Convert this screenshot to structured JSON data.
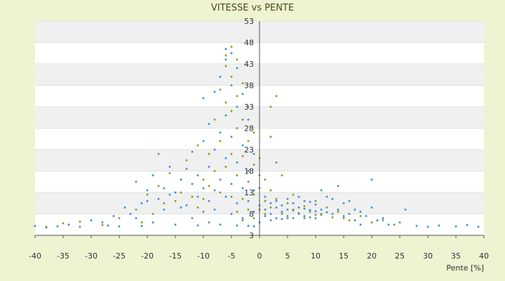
{
  "chart_data": {
    "type": "scatter",
    "title": "VITESSE vs PENTE",
    "xlabel": "Pente [%]",
    "ylabel": "",
    "xlim": [
      -40,
      40
    ],
    "ylim": [
      3,
      53
    ],
    "x_ticks": [
      -40,
      -35,
      -30,
      -25,
      -20,
      -15,
      -10,
      -5,
      0,
      5,
      10,
      15,
      20,
      25,
      30,
      35,
      40
    ],
    "y_ticks": [
      3,
      8,
      13,
      18,
      23,
      28,
      33,
      38,
      43,
      48,
      53
    ],
    "x_tick_labels": [
      "-40",
      "-35",
      "-30",
      "-25",
      "-20",
      "-15",
      "-10",
      "-5",
      "0",
      "5",
      "10",
      "15",
      "20",
      "25",
      "30",
      "35",
      "40"
    ],
    "y_tick_labels": [
      "3",
      "8",
      "13",
      "18",
      "23",
      "28",
      "33",
      "38",
      "43",
      "48",
      "53"
    ],
    "grid": true,
    "legend": "none",
    "colors": {
      "background": "#eef3d2",
      "band_light": "#ffffff",
      "band_dark": "#f0f0f0",
      "series_blue": "#3a8fd6",
      "series_olive": "#8c9a1c",
      "axis": "#555555"
    },
    "series": [
      {
        "color": "#3a8fd6",
        "points": [
          [
            -40,
            5.2
          ],
          [
            -38,
            4.8
          ],
          [
            -36,
            5.1
          ],
          [
            -34,
            5.5
          ],
          [
            -32,
            5.0
          ],
          [
            -30,
            6.5
          ],
          [
            -28,
            6.0
          ],
          [
            -27,
            5.3
          ],
          [
            -26,
            7.5
          ],
          [
            -25,
            5.1
          ],
          [
            -24,
            9.5
          ],
          [
            -23,
            8.0
          ],
          [
            -22,
            7.0
          ],
          [
            -22,
            15.5
          ],
          [
            -21,
            10.5
          ],
          [
            -21,
            5.2
          ],
          [
            -20,
            11.0
          ],
          [
            -20,
            13.5
          ],
          [
            -19,
            17.0
          ],
          [
            -19,
            6.0
          ],
          [
            -18,
            11.5
          ],
          [
            -18,
            22.0
          ],
          [
            -17,
            14.0
          ],
          [
            -17,
            9.0
          ],
          [
            -16,
            12.5
          ],
          [
            -16,
            19.0
          ],
          [
            -15,
            13.0
          ],
          [
            -15,
            5.5
          ],
          [
            -14,
            16.0
          ],
          [
            -14,
            9.5
          ],
          [
            -13,
            10.0
          ],
          [
            -13,
            18.5
          ],
          [
            -12,
            15.0
          ],
          [
            -12,
            7.0
          ],
          [
            -12,
            22.5
          ],
          [
            -11,
            12.0
          ],
          [
            -11,
            17.0
          ],
          [
            -11,
            5.3
          ],
          [
            -10,
            14.0
          ],
          [
            -10,
            25.0
          ],
          [
            -10,
            8.5
          ],
          [
            -10,
            35.0
          ],
          [
            -9,
            19.0
          ],
          [
            -9,
            11.0
          ],
          [
            -9,
            29.0
          ],
          [
            -9,
            6.0
          ],
          [
            -8,
            23.0
          ],
          [
            -8,
            13.5
          ],
          [
            -8,
            36.5
          ],
          [
            -8,
            9.0
          ],
          [
            -7,
            27.0
          ],
          [
            -7,
            16.0
          ],
          [
            -7,
            40.0
          ],
          [
            -7,
            5.5
          ],
          [
            -6,
            44.0
          ],
          [
            -6,
            31.0
          ],
          [
            -6,
            21.0
          ],
          [
            -6,
            12.0
          ],
          [
            -6,
            46.5
          ],
          [
            -5,
            45.5
          ],
          [
            -5,
            38.0
          ],
          [
            -5,
            26.0
          ],
          [
            -5,
            15.0
          ],
          [
            -5,
            8.0
          ],
          [
            -4,
            42.0
          ],
          [
            -4,
            33.0
          ],
          [
            -4,
            20.0
          ],
          [
            -4,
            10.5
          ],
          [
            -4,
            5.3
          ],
          [
            -3,
            36.0
          ],
          [
            -3,
            24.0
          ],
          [
            -3,
            14.0
          ],
          [
            -3,
            7.0
          ],
          [
            -2,
            30.0
          ],
          [
            -2,
            18.0
          ],
          [
            -2,
            11.0
          ],
          [
            -2,
            5.2
          ],
          [
            -1,
            22.0
          ],
          [
            -1,
            13.5
          ],
          [
            -1,
            8.5
          ],
          [
            -1,
            5.1
          ],
          [
            0,
            17.0
          ],
          [
            0,
            10.0
          ],
          [
            0,
            6.0
          ],
          [
            1,
            12.0
          ],
          [
            1,
            9.0
          ],
          [
            1,
            7.5
          ],
          [
            2,
            10.5
          ],
          [
            2,
            8.0
          ],
          [
            2,
            6.5
          ],
          [
            3,
            11.0
          ],
          [
            3,
            9.5
          ],
          [
            3,
            7.0
          ],
          [
            4,
            10.0
          ],
          [
            4,
            8.5
          ],
          [
            4,
            6.8
          ],
          [
            5,
            11.5
          ],
          [
            5,
            9.0
          ],
          [
            5,
            7.5
          ],
          [
            6,
            10.5
          ],
          [
            6,
            8.8
          ],
          [
            6,
            7.0
          ],
          [
            7,
            12.0
          ],
          [
            7,
            9.5
          ],
          [
            7,
            8.0
          ],
          [
            8,
            11.0
          ],
          [
            8,
            9.2
          ],
          [
            8,
            7.5
          ],
          [
            9,
            10.8
          ],
          [
            9,
            8.9
          ],
          [
            9,
            7.2
          ],
          [
            10,
            10.2
          ],
          [
            10,
            8.6
          ],
          [
            10,
            7.0
          ],
          [
            11,
            13.5
          ],
          [
            11,
            9.0
          ],
          [
            11,
            7.8
          ],
          [
            12,
            12.0
          ],
          [
            12,
            8.4
          ],
          [
            13,
            11.5
          ],
          [
            13,
            8.0
          ],
          [
            14,
            14.5
          ],
          [
            14,
            9.0
          ],
          [
            15,
            10.5
          ],
          [
            15,
            7.5
          ],
          [
            16,
            11.0
          ],
          [
            16,
            8.0
          ],
          [
            17,
            9.0
          ],
          [
            17,
            6.5
          ],
          [
            18,
            8.5
          ],
          [
            18,
            5.5
          ],
          [
            19,
            7.5
          ],
          [
            20,
            9.5
          ],
          [
            20,
            16.0
          ],
          [
            21,
            6.5
          ],
          [
            22,
            7.0
          ],
          [
            23,
            5.5
          ],
          [
            25,
            6.0
          ],
          [
            26,
            9.0
          ],
          [
            28,
            5.2
          ],
          [
            30,
            5.0
          ],
          [
            32,
            5.3
          ],
          [
            35,
            5.1
          ],
          [
            37,
            5.4
          ],
          [
            39,
            5.0
          ]
        ]
      },
      {
        "color": "#8c9a1c",
        "points": [
          [
            -38,
            5.0
          ],
          [
            -35,
            5.8
          ],
          [
            -32,
            6.2
          ],
          [
            -28,
            5.4
          ],
          [
            -25,
            7.0
          ],
          [
            -22,
            9.0
          ],
          [
            -21,
            6.0
          ],
          [
            -20,
            12.5
          ],
          [
            -19,
            8.0
          ],
          [
            -18,
            14.5
          ],
          [
            -17,
            10.5
          ],
          [
            -16,
            17.5
          ],
          [
            -15,
            11.0
          ],
          [
            -14,
            13.0
          ],
          [
            -13,
            20.5
          ],
          [
            -12,
            12.0
          ],
          [
            -11,
            9.5
          ],
          [
            -11,
            24.0
          ],
          [
            -10,
            16.0
          ],
          [
            -10,
            11.5
          ],
          [
            -9,
            22.0
          ],
          [
            -9,
            14.5
          ],
          [
            -8,
            30.0
          ],
          [
            -8,
            18.0
          ],
          [
            -7,
            37.0
          ],
          [
            -7,
            25.0
          ],
          [
            -7,
            13.0
          ],
          [
            -6,
            42.5
          ],
          [
            -6,
            34.0
          ],
          [
            -6,
            19.0
          ],
          [
            -6,
            45.0
          ],
          [
            -5,
            47.0
          ],
          [
            -5,
            40.0
          ],
          [
            -5,
            32.0
          ],
          [
            -5,
            22.0
          ],
          [
            -5,
            12.0
          ],
          [
            -4,
            44.0
          ],
          [
            -4,
            35.5
          ],
          [
            -4,
            28.0
          ],
          [
            -4,
            17.0
          ],
          [
            -4,
            8.5
          ],
          [
            -3,
            38.5
          ],
          [
            -3,
            30.0
          ],
          [
            -3,
            21.5
          ],
          [
            -3,
            11.5
          ],
          [
            -3,
            6.5
          ],
          [
            -2,
            33.0
          ],
          [
            -2,
            25.0
          ],
          [
            -2,
            15.5
          ],
          [
            -2,
            9.0
          ],
          [
            -1,
            27.0
          ],
          [
            -1,
            19.5
          ],
          [
            -1,
            12.5
          ],
          [
            -1,
            7.0
          ],
          [
            0,
            21.0
          ],
          [
            0,
            14.0
          ],
          [
            0,
            9.0
          ],
          [
            1,
            16.0
          ],
          [
            1,
            11.0
          ],
          [
            1,
            8.0
          ],
          [
            2,
            33.0
          ],
          [
            2,
            26.0
          ],
          [
            2,
            13.5
          ],
          [
            2,
            9.5
          ],
          [
            3,
            35.5
          ],
          [
            3,
            20.0
          ],
          [
            3,
            11.5
          ],
          [
            4,
            8.0
          ],
          [
            4,
            17.0
          ],
          [
            5,
            10.5
          ],
          [
            5,
            7.0
          ],
          [
            6,
            9.0
          ],
          [
            6,
            12.5
          ],
          [
            7,
            8.2
          ],
          [
            8,
            9.8
          ],
          [
            8,
            7.0
          ],
          [
            9,
            8.5
          ],
          [
            10,
            7.8
          ],
          [
            10,
            11.0
          ],
          [
            11,
            8.0
          ],
          [
            12,
            9.5
          ],
          [
            13,
            7.2
          ],
          [
            14,
            8.5
          ],
          [
            15,
            7.0
          ],
          [
            16,
            6.5
          ],
          [
            18,
            7.5
          ],
          [
            20,
            6.0
          ],
          [
            22,
            6.5
          ],
          [
            24,
            5.5
          ]
        ]
      }
    ]
  }
}
